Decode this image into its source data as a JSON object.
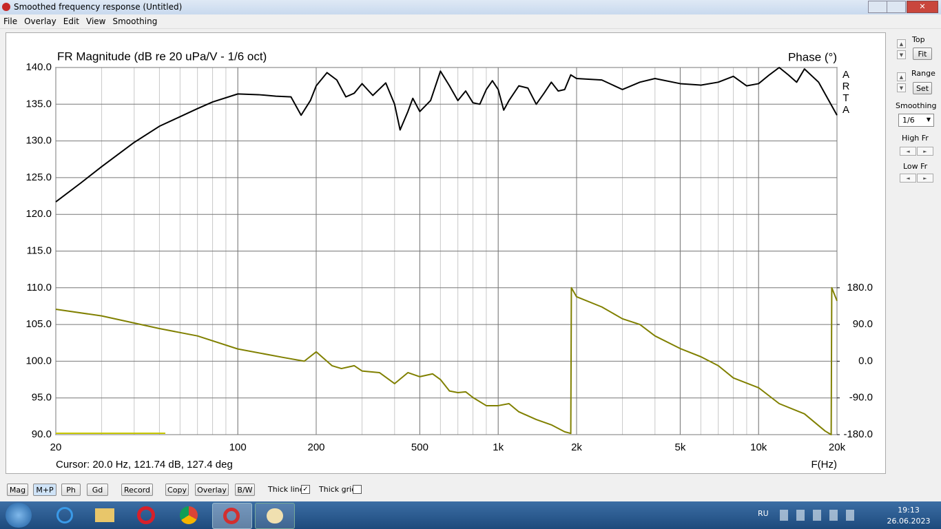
{
  "window": {
    "title": "Smoothed frequency response (Untitled)"
  },
  "menu": [
    "File",
    "Overlay",
    "Edit",
    "View",
    "Smoothing"
  ],
  "chart_data": {
    "type": "line",
    "title": "FR Magnitude (dB re 20 uPa/V - 1/6 oct)",
    "y2_label": "Phase (°)",
    "watermark": "ARTA",
    "cursor": "Cursor: 20.0 Hz, 121.74 dB, 127.4 deg",
    "x_label": "F(Hz)",
    "log_x": true,
    "grid": true,
    "minor_grid": true,
    "xlim": [
      20,
      20000
    ],
    "xticks": [
      20,
      100,
      200,
      500,
      {
        "value": 1000,
        "label": "1k"
      },
      {
        "value": 2000,
        "label": "2k"
      },
      {
        "value": 5000,
        "label": "5k"
      },
      {
        "value": 10000,
        "label": "10k"
      },
      {
        "value": 20000,
        "label": "20k"
      }
    ],
    "ylim": [
      90,
      140
    ],
    "yticks": [
      {
        "value": 90,
        "label": "90.0"
      },
      {
        "value": 95,
        "label": "95.0"
      },
      {
        "value": 100,
        "label": "100.0"
      },
      {
        "value": 105,
        "label": "105.0"
      },
      {
        "value": 110,
        "label": "110.0"
      },
      {
        "value": 115,
        "label": "115.0"
      },
      {
        "value": 120,
        "label": "120.0"
      },
      {
        "value": 125,
        "label": "125.0"
      },
      {
        "value": 130,
        "label": "130.0"
      },
      {
        "value": 135,
        "label": "135.0"
      },
      {
        "value": 140,
        "label": "140.0"
      }
    ],
    "y2lim": [
      -180,
      720
    ],
    "y2ticks": [
      {
        "value": -180,
        "label": "-180.0"
      },
      {
        "value": -90,
        "label": "-90.0"
      },
      {
        "value": 0,
        "label": "0.0"
      },
      {
        "value": 90,
        "label": "90.0"
      },
      {
        "value": 180,
        "label": "180.0"
      }
    ],
    "series": [
      {
        "color": "#000000",
        "x": [
          20,
          25,
          30,
          40,
          50,
          60,
          70,
          80,
          100,
          120,
          140,
          160,
          175,
          190,
          200,
          220,
          240,
          260,
          280,
          300,
          330,
          370,
          400,
          420,
          450,
          470,
          500,
          550,
          600,
          650,
          700,
          750,
          800,
          850,
          900,
          950,
          1000,
          1050,
          1100,
          1200,
          1300,
          1400,
          1500,
          1600,
          1700,
          1800,
          1900,
          2000,
          2500,
          3000,
          3500,
          4000,
          5000,
          6000,
          7000,
          8000,
          9000,
          10000,
          11000,
          12000,
          13000,
          14000,
          15000,
          17000,
          20000
        ],
        "values": [
          121.7,
          124.3,
          126.5,
          129.8,
          132.0,
          133.3,
          134.4,
          135.3,
          136.4,
          136.3,
          136.1,
          136.0,
          133.5,
          135.5,
          137.5,
          139.3,
          138.3,
          136.0,
          136.5,
          137.8,
          136.2,
          137.9,
          135.0,
          131.5,
          134.0,
          135.8,
          134.0,
          135.5,
          139.5,
          137.5,
          135.5,
          136.8,
          135.2,
          135.0,
          137.0,
          138.2,
          137.0,
          134.2,
          135.5,
          137.5,
          137.2,
          135.0,
          136.5,
          138.0,
          136.8,
          137.0,
          139.0,
          138.5,
          138.3,
          137.0,
          138.0,
          138.5,
          137.8,
          137.6,
          138.0,
          138.8,
          137.5,
          137.8,
          139.0,
          140.0,
          139.0,
          138.0,
          139.8,
          138.0,
          133.5
        ]
      },
      {
        "color": "#808000",
        "axis": "y2",
        "x": [
          20,
          30,
          50,
          70,
          100,
          150,
          180,
          200,
          230,
          250,
          280,
          300,
          350,
          400,
          450,
          500,
          560,
          600,
          650,
          700,
          750,
          800,
          900,
          1000,
          1100,
          1200,
          1400,
          1600,
          1800,
          1900,
          1910,
          2000,
          2500,
          3000,
          3500,
          4000,
          5000,
          6000,
          7000,
          8000,
          10000,
          12000,
          15000,
          18000,
          19000,
          19100,
          20000
        ],
        "values": [
          127.4,
          111,
          80,
          62,
          30,
          9,
          0,
          23,
          -11,
          -18,
          -11,
          -24,
          -28,
          -55,
          -28,
          -38,
          -31,
          -45,
          -73,
          -77,
          -75,
          -89,
          -109,
          -109,
          -104,
          -124,
          -143,
          -156,
          -173,
          -177,
          180,
          158,
          133,
          104,
          90,
          62,
          31,
          11,
          -11,
          -41,
          -65,
          -104,
          -129,
          -171,
          -180,
          180,
          148
        ]
      }
    ]
  },
  "side_panel": {
    "top": "Top",
    "fit": "Fit",
    "range": "Range",
    "set": "Set",
    "smoothing": "Smoothing",
    "smoothing_value": "1/6",
    "high_fr": "High Fr",
    "low_fr": "Low Fr"
  },
  "toolbar": {
    "buttons": [
      "Mag",
      "M+P",
      "Ph",
      "Gd",
      "Record",
      "Copy",
      "Overlay",
      "B/W"
    ],
    "thick_line": {
      "label": "Thick line",
      "checked": true
    },
    "thick_grid": {
      "label": "Thick grid",
      "checked": false
    }
  },
  "taskbar": {
    "language": "RU",
    "time": "19:13",
    "date": "26.06.2023"
  }
}
